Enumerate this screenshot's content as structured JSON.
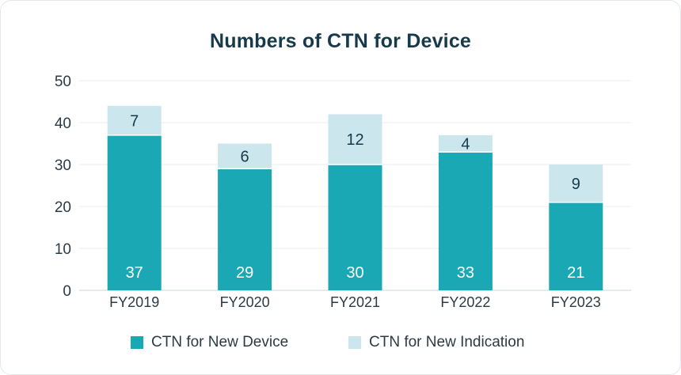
{
  "chart_data": {
    "type": "bar",
    "stacked": true,
    "title": "Numbers of CTN for Device",
    "categories": [
      "FY2019",
      "FY2020",
      "FY2021",
      "FY2022",
      "FY2023"
    ],
    "series": [
      {
        "name": "CTN for New Device",
        "values": [
          37,
          29,
          30,
          33,
          21
        ],
        "color": "#1aa8b4"
      },
      {
        "name": "CTN for New Indication",
        "values": [
          7,
          6,
          12,
          4,
          9
        ],
        "color": "#cce6ee"
      }
    ],
    "yticks": [
      "0",
      "10",
      "20",
      "30",
      "40",
      "50"
    ],
    "ylim": [
      0,
      50
    ],
    "grid": true,
    "legend_position": "bottom"
  }
}
